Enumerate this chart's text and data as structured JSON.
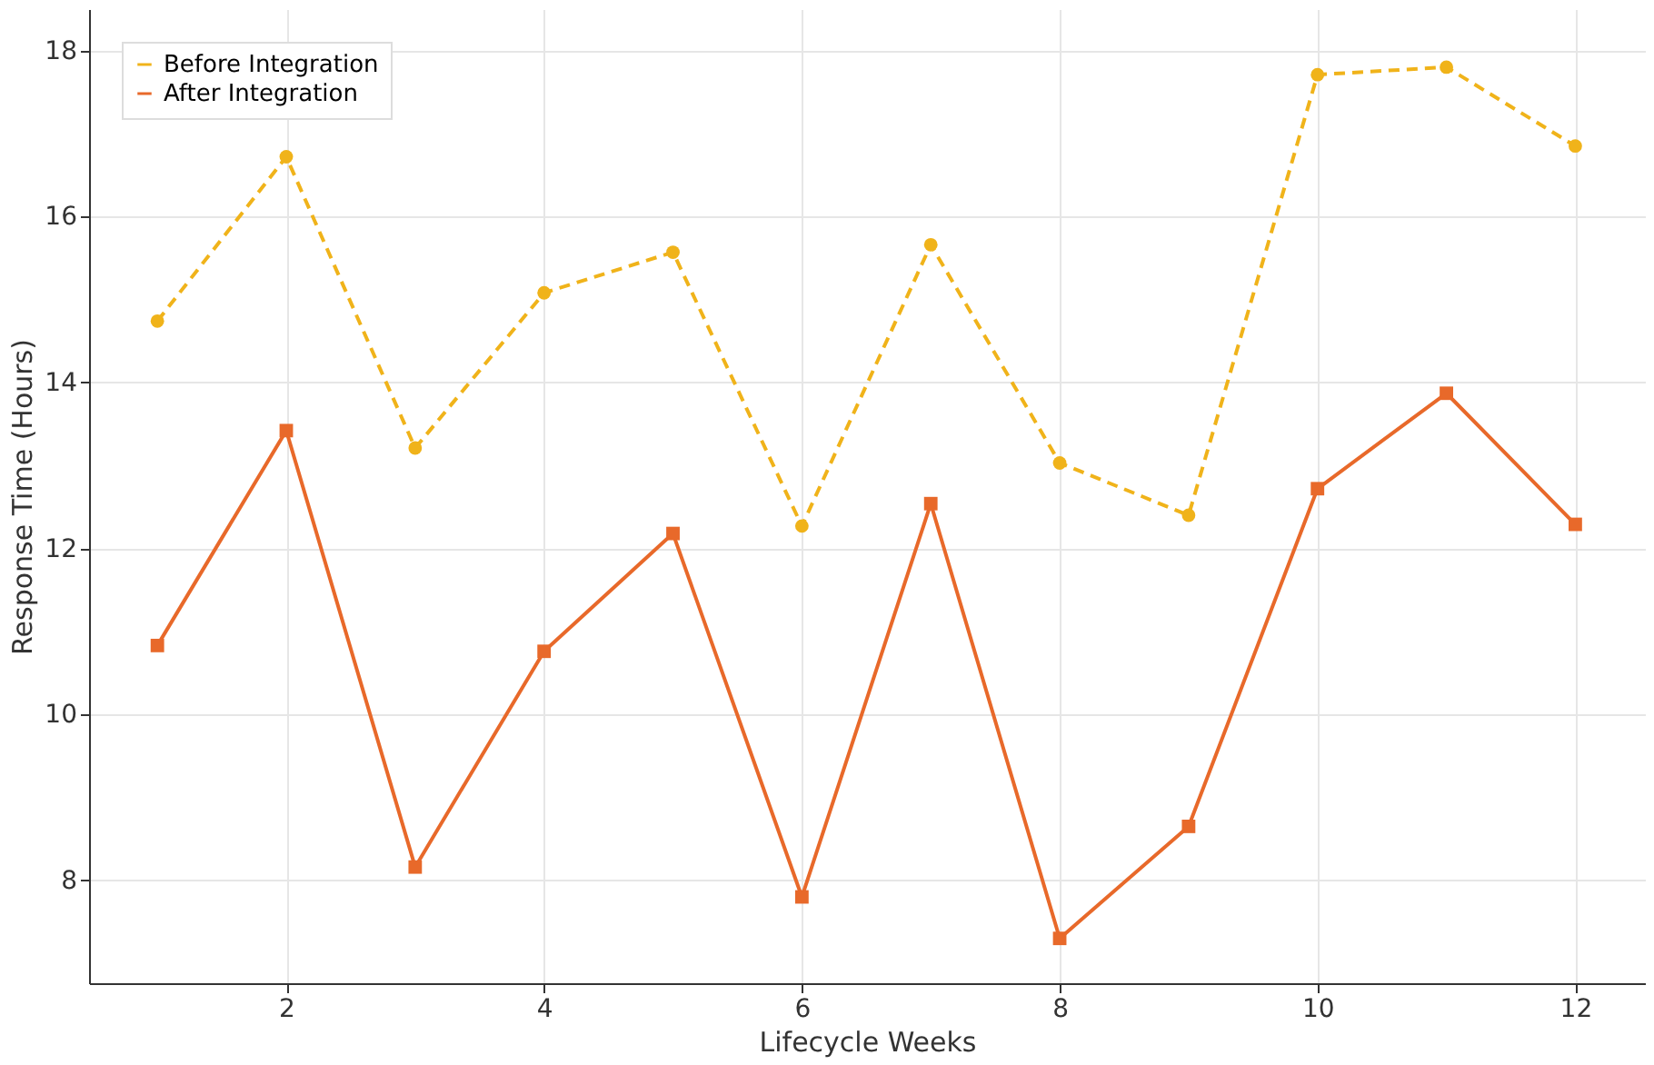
{
  "chart_data": {
    "type": "line",
    "xlabel": "Lifecycle Weeks",
    "ylabel": "Response Time (Hours)",
    "x": [
      1,
      2,
      3,
      4,
      5,
      6,
      7,
      8,
      9,
      10,
      11,
      12
    ],
    "series": [
      {
        "name": "Before Integration",
        "color": "#f0b31a",
        "marker": "circle",
        "line_style": "dashed",
        "values": [
          14.74,
          16.72,
          13.21,
          15.08,
          15.57,
          12.27,
          15.66,
          13.03,
          12.4,
          17.71,
          17.8,
          16.85
        ]
      },
      {
        "name": "After Integration",
        "color": "#e8692a",
        "marker": "square",
        "line_style": "solid",
        "values": [
          10.83,
          13.42,
          8.16,
          10.76,
          12.18,
          7.8,
          12.54,
          7.3,
          8.65,
          12.72,
          13.87,
          12.29
        ]
      }
    ],
    "xlim": [
      0.47,
      12.54
    ],
    "ylim": [
      6.76,
      18.5
    ],
    "xticks": [
      2,
      4,
      6,
      8,
      10,
      12
    ],
    "yticks": [
      8,
      10,
      12,
      14,
      16,
      18
    ],
    "grid": true,
    "legend": "top left"
  }
}
